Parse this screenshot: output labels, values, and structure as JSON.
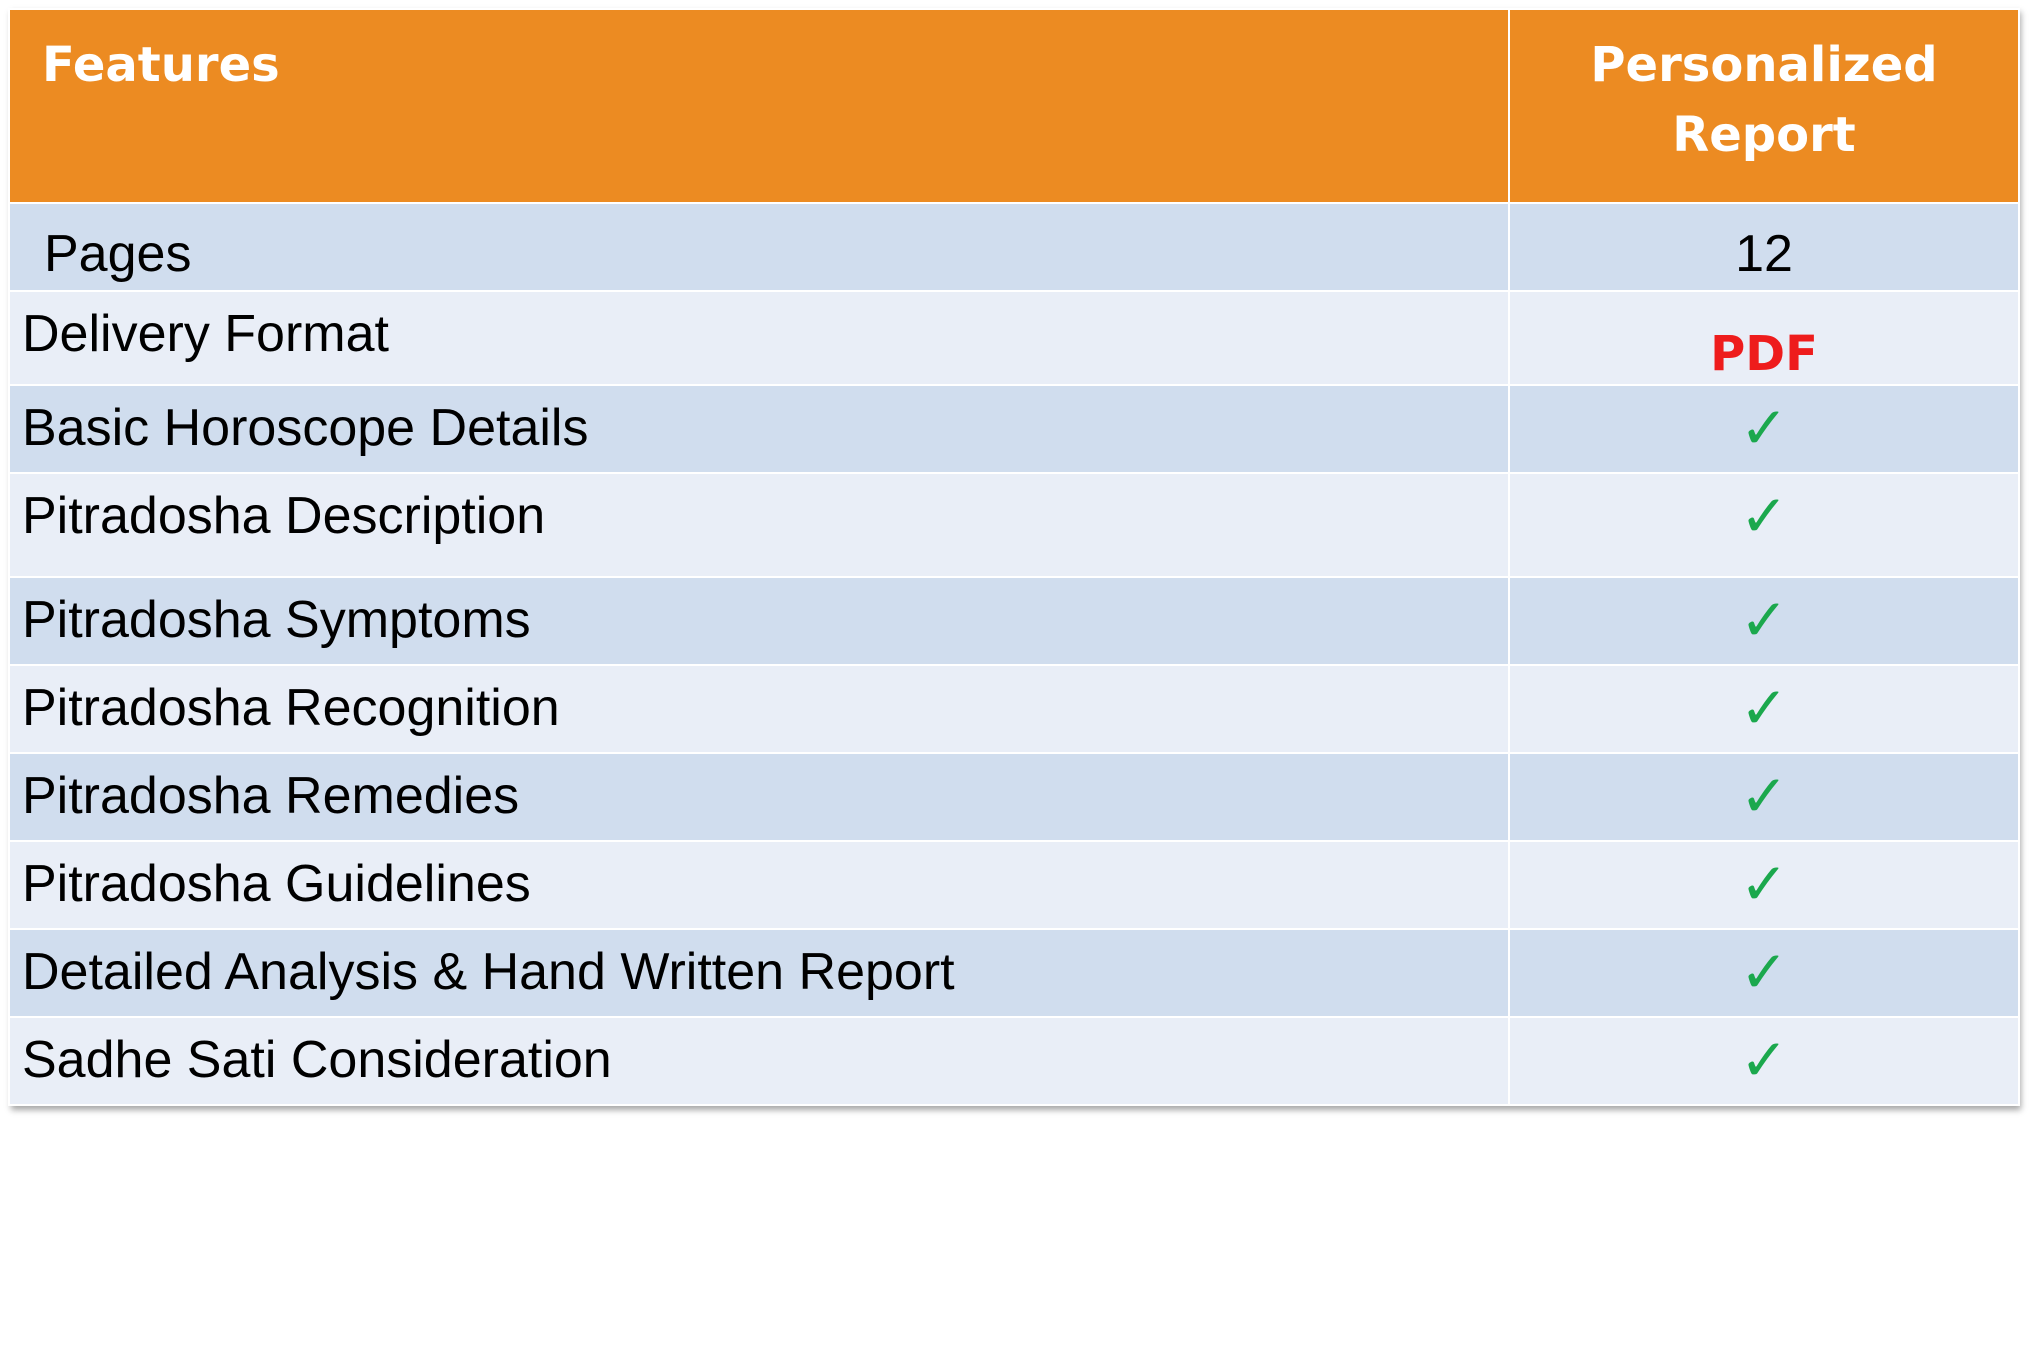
{
  "table": {
    "header": {
      "features": "Features",
      "report_line1": "Personalized",
      "report_line2": "Report"
    },
    "rows": [
      {
        "feature": "Pages",
        "value": "12"
      },
      {
        "feature": "Delivery Format",
        "value": "PDF"
      },
      {
        "feature": "Basic Horoscope Details",
        "value": "✓"
      },
      {
        "feature": "Pitradosha Description",
        "value": "✓"
      },
      {
        "feature": "Pitradosha Symptoms",
        "value": "✓"
      },
      {
        "feature": "Pitradosha Recognition",
        "value": "✓"
      },
      {
        "feature": "Pitradosha Remedies",
        "value": "✓"
      },
      {
        "feature": "Pitradosha Guidelines",
        "value": "✓"
      },
      {
        "feature": "Detailed Analysis & Hand Written Report",
        "value": "✓"
      },
      {
        "feature": "Sadhe Sati Consideration",
        "value": "✓"
      }
    ]
  },
  "colors": {
    "header_bg": "#ec8b22",
    "row_dark": "#d0ddee",
    "row_light": "#e9eef7",
    "check": "#1ba84d",
    "pdf": "#ee1c1c"
  },
  "icons": {
    "check": "check-icon"
  }
}
